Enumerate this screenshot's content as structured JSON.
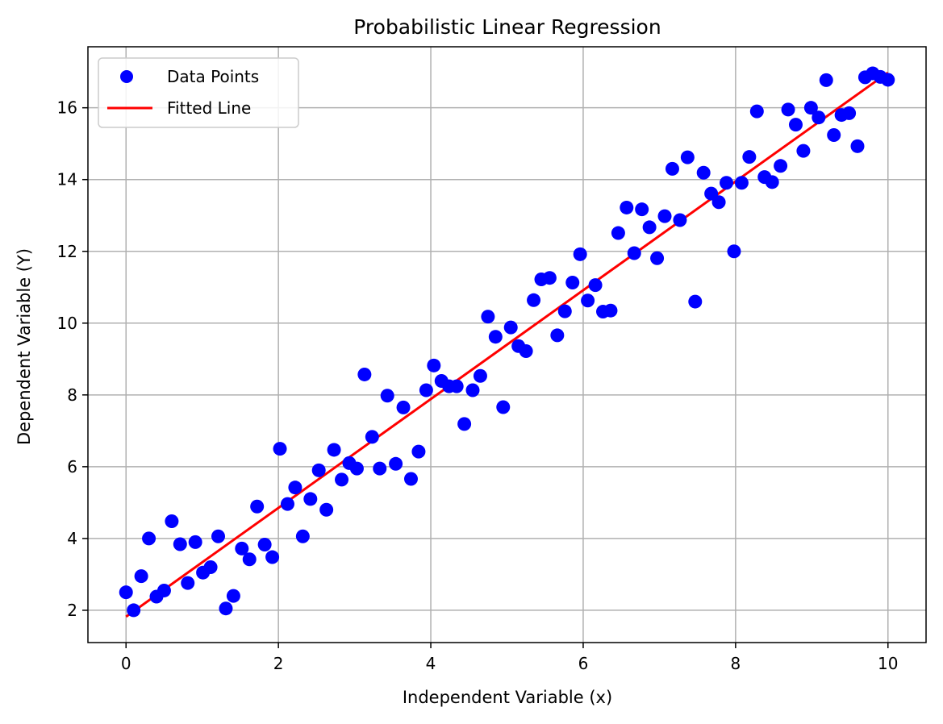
{
  "chart_data": {
    "type": "scatter",
    "title": "Probabilistic Linear Regression",
    "xlabel": "Independent Variable (x)",
    "ylabel": "Dependent Variable (Y)",
    "xlim": [
      -0.5,
      10.5
    ],
    "ylim": [
      1.1,
      17.7
    ],
    "xticks": [
      0,
      2,
      4,
      6,
      8,
      10
    ],
    "yticks": [
      2,
      4,
      6,
      8,
      10,
      12,
      14,
      16
    ],
    "grid": true,
    "legend_position": "top-left",
    "series": [
      {
        "name": "Data Points",
        "kind": "scatter",
        "color": "#0000ff",
        "x": [
          0.0,
          0.1,
          0.2,
          0.3,
          0.4,
          0.5,
          0.6,
          0.71,
          0.81,
          0.91,
          1.01,
          1.11,
          1.21,
          1.31,
          1.41,
          1.52,
          1.62,
          1.72,
          1.82,
          1.92,
          2.02,
          2.12,
          2.22,
          2.32,
          2.42,
          2.53,
          2.63,
          2.73,
          2.83,
          2.93,
          3.03,
          3.13,
          3.23,
          3.33,
          3.43,
          3.54,
          3.64,
          3.74,
          3.84,
          3.94,
          4.04,
          4.14,
          4.24,
          4.34,
          4.44,
          4.55,
          4.65,
          4.75,
          4.85,
          4.95,
          5.05,
          5.15,
          5.25,
          5.35,
          5.45,
          5.56,
          5.66,
          5.76,
          5.86,
          5.96,
          6.06,
          6.16,
          6.26,
          6.36,
          6.46,
          6.57,
          6.67,
          6.77,
          6.87,
          6.97,
          7.07,
          7.17,
          7.27,
          7.37,
          7.47,
          7.58,
          7.68,
          7.78,
          7.88,
          7.98,
          8.08,
          8.18,
          8.28,
          8.38,
          8.48,
          8.59,
          8.69,
          8.79,
          8.89,
          8.99,
          9.09,
          9.19,
          9.29,
          9.39,
          9.49,
          9.6,
          9.7,
          9.8,
          9.9,
          10.0
        ],
        "y": [
          2.5,
          2.0,
          2.95,
          4.0,
          2.38,
          2.55,
          4.48,
          3.84,
          2.76,
          3.9,
          3.05,
          3.2,
          4.06,
          2.05,
          2.4,
          3.72,
          3.42,
          4.89,
          3.83,
          3.48,
          6.5,
          4.96,
          5.42,
          4.06,
          5.1,
          5.9,
          4.8,
          6.47,
          5.64,
          6.1,
          5.95,
          8.57,
          6.83,
          5.95,
          7.98,
          6.08,
          7.65,
          5.66,
          6.42,
          8.13,
          8.82,
          8.39,
          8.24,
          8.24,
          7.19,
          8.13,
          8.53,
          10.18,
          9.62,
          7.66,
          9.88,
          9.36,
          9.22,
          10.64,
          11.22,
          11.26,
          9.66,
          10.33,
          11.13,
          11.92,
          10.63,
          11.06,
          10.32,
          10.35,
          12.51,
          13.22,
          11.95,
          13.17,
          12.67,
          11.81,
          12.98,
          14.3,
          12.87,
          14.62,
          10.6,
          14.19,
          13.61,
          13.37,
          13.91,
          12.0,
          13.91,
          14.63,
          15.9,
          14.07,
          13.93,
          14.38,
          15.95,
          15.53,
          14.8,
          16.0,
          15.73,
          16.77,
          15.24,
          15.8,
          15.85,
          14.93,
          16.85,
          16.96,
          16.86,
          16.78
        ]
      },
      {
        "name": "Fitted Line",
        "kind": "line",
        "color": "#ff0000",
        "x": [
          0,
          10
        ],
        "y": [
          1.82,
          16.98
        ]
      }
    ]
  },
  "colors": {
    "grid": "#b0b0b0",
    "axes": "#000000"
  }
}
